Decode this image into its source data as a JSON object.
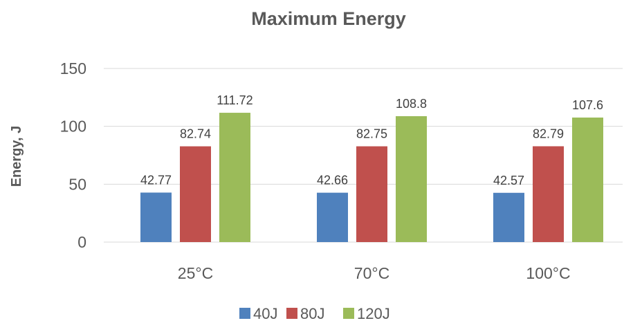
{
  "chart_data": {
    "type": "bar",
    "title": "Maximum Energy",
    "xlabel": "",
    "ylabel": "Energy, J",
    "categories": [
      "25°C",
      "70°C",
      "100°C"
    ],
    "series": [
      {
        "name": "40J",
        "values": [
          42.77,
          42.66,
          42.57
        ],
        "color": "#4f81bd"
      },
      {
        "name": "80J",
        "values": [
          82.74,
          82.75,
          82.79
        ],
        "color": "#c0504d"
      },
      {
        "name": "120J",
        "values": [
          111.72,
          108.8,
          107.6
        ],
        "color": "#9bbb59"
      }
    ],
    "ylim": [
      0,
      150
    ],
    "yticks": [
      0,
      50,
      100,
      150
    ],
    "grid": true,
    "legend_position": "bottom"
  }
}
